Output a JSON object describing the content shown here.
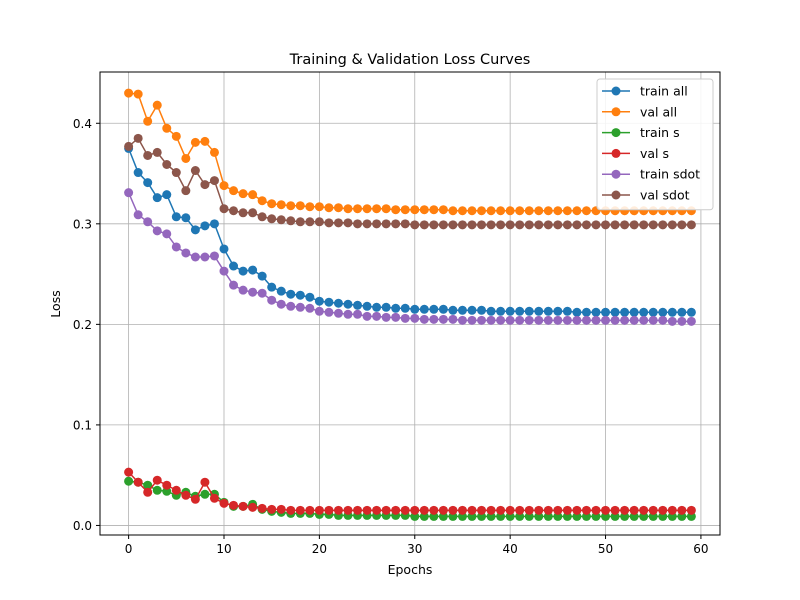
{
  "chart_data": {
    "type": "line",
    "title": "Training & Validation Loss Curves",
    "xlabel": "Epochs",
    "ylabel": "Loss",
    "xlim": [
      -3,
      62
    ],
    "ylim": [
      -0.0095,
      0.451
    ],
    "xticks": [
      0,
      10,
      20,
      30,
      40,
      50,
      60
    ],
    "yticks": [
      0.0,
      0.1,
      0.2,
      0.3,
      0.4
    ],
    "xtick_labels": [
      "0",
      "10",
      "20",
      "30",
      "40",
      "50",
      "60"
    ],
    "ytick_labels": [
      "0.0",
      "0.1",
      "0.2",
      "0.3",
      "0.4"
    ],
    "grid": true,
    "legend_position": "top-right",
    "x": [
      0,
      1,
      2,
      3,
      4,
      5,
      6,
      7,
      8,
      9,
      10,
      11,
      12,
      13,
      14,
      15,
      16,
      17,
      18,
      19,
      20,
      21,
      22,
      23,
      24,
      25,
      26,
      27,
      28,
      29,
      30,
      31,
      32,
      33,
      34,
      35,
      36,
      37,
      38,
      39,
      40,
      41,
      42,
      43,
      44,
      45,
      46,
      47,
      48,
      49,
      50,
      51,
      52,
      53,
      54,
      55,
      56,
      57,
      58,
      59
    ],
    "series": [
      {
        "name": "train all",
        "color": "#1f77b4",
        "values": [
          0.375,
          0.351,
          0.341,
          0.326,
          0.329,
          0.307,
          0.306,
          0.294,
          0.298,
          0.3,
          0.275,
          0.258,
          0.253,
          0.254,
          0.248,
          0.237,
          0.233,
          0.23,
          0.229,
          0.227,
          0.223,
          0.222,
          0.221,
          0.22,
          0.219,
          0.218,
          0.217,
          0.217,
          0.216,
          0.216,
          0.215,
          0.215,
          0.215,
          0.215,
          0.214,
          0.214,
          0.214,
          0.214,
          0.213,
          0.213,
          0.213,
          0.213,
          0.213,
          0.213,
          0.213,
          0.213,
          0.213,
          0.212,
          0.212,
          0.212,
          0.212,
          0.212,
          0.212,
          0.212,
          0.212,
          0.212,
          0.212,
          0.212,
          0.212,
          0.212
        ]
      },
      {
        "name": "val all",
        "color": "#ff7f0e",
        "values": [
          0.43,
          0.429,
          0.402,
          0.418,
          0.395,
          0.387,
          0.365,
          0.381,
          0.382,
          0.371,
          0.338,
          0.333,
          0.33,
          0.329,
          0.323,
          0.32,
          0.319,
          0.318,
          0.318,
          0.317,
          0.317,
          0.316,
          0.316,
          0.315,
          0.315,
          0.315,
          0.315,
          0.315,
          0.314,
          0.314,
          0.314,
          0.314,
          0.314,
          0.314,
          0.313,
          0.313,
          0.313,
          0.313,
          0.313,
          0.313,
          0.313,
          0.313,
          0.313,
          0.313,
          0.313,
          0.313,
          0.313,
          0.313,
          0.313,
          0.313,
          0.313,
          0.313,
          0.313,
          0.313,
          0.313,
          0.313,
          0.313,
          0.313,
          0.313,
          0.313
        ]
      },
      {
        "name": "train s",
        "color": "#2ca02c",
        "values": [
          0.044,
          0.043,
          0.04,
          0.035,
          0.034,
          0.03,
          0.033,
          0.029,
          0.031,
          0.031,
          0.023,
          0.019,
          0.019,
          0.021,
          0.016,
          0.014,
          0.013,
          0.012,
          0.012,
          0.012,
          0.011,
          0.011,
          0.01,
          0.01,
          0.01,
          0.01,
          0.01,
          0.01,
          0.01,
          0.01,
          0.009,
          0.009,
          0.009,
          0.009,
          0.009,
          0.009,
          0.009,
          0.009,
          0.009,
          0.009,
          0.009,
          0.009,
          0.009,
          0.009,
          0.009,
          0.009,
          0.009,
          0.009,
          0.009,
          0.009,
          0.009,
          0.009,
          0.009,
          0.009,
          0.009,
          0.009,
          0.009,
          0.009,
          0.009,
          0.009
        ]
      },
      {
        "name": "val s",
        "color": "#d62728",
        "values": [
          0.053,
          0.043,
          0.033,
          0.045,
          0.04,
          0.035,
          0.03,
          0.026,
          0.043,
          0.027,
          0.022,
          0.02,
          0.019,
          0.018,
          0.017,
          0.016,
          0.016,
          0.015,
          0.015,
          0.015,
          0.015,
          0.015,
          0.015,
          0.015,
          0.015,
          0.015,
          0.015,
          0.015,
          0.015,
          0.015,
          0.015,
          0.015,
          0.015,
          0.015,
          0.015,
          0.015,
          0.015,
          0.015,
          0.015,
          0.015,
          0.015,
          0.015,
          0.015,
          0.015,
          0.015,
          0.015,
          0.015,
          0.015,
          0.015,
          0.015,
          0.015,
          0.015,
          0.015,
          0.015,
          0.015,
          0.015,
          0.015,
          0.015,
          0.015,
          0.015
        ]
      },
      {
        "name": "train sdot",
        "color": "#9467bd",
        "values": [
          0.331,
          0.309,
          0.302,
          0.293,
          0.29,
          0.277,
          0.271,
          0.267,
          0.267,
          0.268,
          0.253,
          0.239,
          0.234,
          0.232,
          0.231,
          0.224,
          0.22,
          0.218,
          0.217,
          0.216,
          0.213,
          0.212,
          0.211,
          0.21,
          0.21,
          0.208,
          0.208,
          0.207,
          0.207,
          0.206,
          0.206,
          0.205,
          0.205,
          0.205,
          0.205,
          0.204,
          0.204,
          0.204,
          0.204,
          0.204,
          0.204,
          0.204,
          0.204,
          0.204,
          0.204,
          0.204,
          0.204,
          0.204,
          0.204,
          0.204,
          0.204,
          0.204,
          0.204,
          0.204,
          0.204,
          0.204,
          0.204,
          0.203,
          0.203,
          0.203
        ]
      },
      {
        "name": "val sdot",
        "color": "#8c564b",
        "values": [
          0.377,
          0.385,
          0.368,
          0.371,
          0.359,
          0.351,
          0.333,
          0.353,
          0.339,
          0.343,
          0.315,
          0.313,
          0.311,
          0.311,
          0.307,
          0.305,
          0.304,
          0.303,
          0.302,
          0.302,
          0.302,
          0.301,
          0.301,
          0.301,
          0.3,
          0.3,
          0.3,
          0.3,
          0.3,
          0.3,
          0.299,
          0.299,
          0.299,
          0.299,
          0.299,
          0.299,
          0.299,
          0.299,
          0.299,
          0.299,
          0.299,
          0.299,
          0.299,
          0.299,
          0.299,
          0.299,
          0.299,
          0.299,
          0.299,
          0.299,
          0.299,
          0.299,
          0.299,
          0.299,
          0.299,
          0.299,
          0.299,
          0.299,
          0.299,
          0.299
        ]
      }
    ]
  }
}
